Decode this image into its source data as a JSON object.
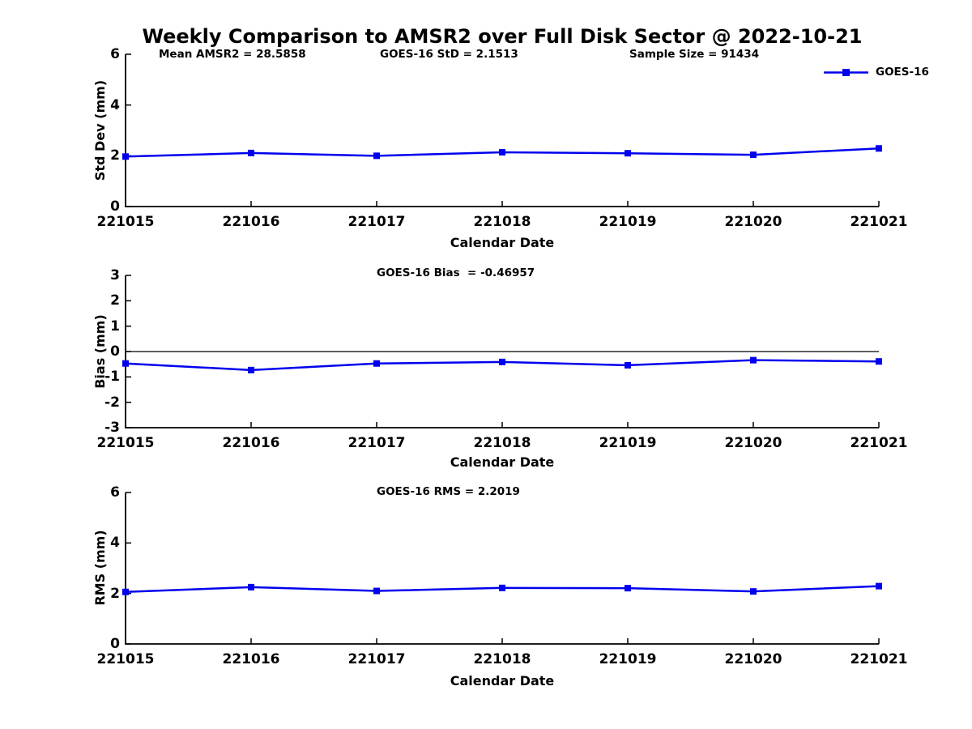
{
  "page": {
    "title": "Weekly Comparison to AMSR2 over Full Disk Sector @ 2022-10-21"
  },
  "legend": {
    "series_label": "GOES-16"
  },
  "colors": {
    "line": "#0000EE",
    "marker": "#0000EE",
    "axis": "#000000",
    "text": "#000000",
    "background": "#FFFFFF"
  },
  "chart_data": [
    {
      "type": "line",
      "panel": "std-dev",
      "annotations": [
        {
          "text": "Mean AMSR2 = 28.5858"
        },
        {
          "text": "GOES-16 StD = 2.1513"
        },
        {
          "text": "Sample Size = 91434"
        }
      ],
      "xlabel": "Calendar Date",
      "ylabel": "Std Dev (mm)",
      "categories": [
        "221015",
        "221016",
        "221017",
        "221018",
        "221019",
        "221020",
        "221021"
      ],
      "series": [
        {
          "name": "GOES-16",
          "values": [
            1.97,
            2.11,
            2.0,
            2.14,
            2.1,
            2.04,
            2.29
          ]
        }
      ],
      "ylim": [
        0,
        6
      ],
      "yticks": [
        0,
        2,
        4,
        6
      ],
      "grid": false,
      "zero_line": false,
      "legend_position": "top-right"
    },
    {
      "type": "line",
      "panel": "bias",
      "annotations": [
        {
          "text": "GOES-16 Bias  = -0.46957"
        }
      ],
      "xlabel": "Calendar Date",
      "ylabel": "Bias (mm)",
      "categories": [
        "221015",
        "221016",
        "221017",
        "221018",
        "221019",
        "221020",
        "221021"
      ],
      "series": [
        {
          "name": "GOES-16",
          "values": [
            -0.47,
            -0.73,
            -0.47,
            -0.41,
            -0.54,
            -0.34,
            -0.39
          ]
        }
      ],
      "ylim": [
        -3,
        3
      ],
      "yticks": [
        -3,
        -2,
        -1,
        0,
        1,
        2,
        3
      ],
      "grid": false,
      "zero_line": true,
      "legend_position": "none"
    },
    {
      "type": "line",
      "panel": "rms",
      "annotations": [
        {
          "text": "GOES-16 RMS = 2.2019"
        }
      ],
      "xlabel": "Calendar Date",
      "ylabel": "RMS (mm)",
      "categories": [
        "221015",
        "221016",
        "221017",
        "221018",
        "221019",
        "221020",
        "221021"
      ],
      "series": [
        {
          "name": "GOES-16",
          "values": [
            2.06,
            2.25,
            2.1,
            2.22,
            2.21,
            2.08,
            2.29
          ]
        }
      ],
      "ylim": [
        0,
        6
      ],
      "yticks": [
        0,
        2,
        4,
        6
      ],
      "grid": false,
      "zero_line": false,
      "legend_position": "none"
    }
  ]
}
